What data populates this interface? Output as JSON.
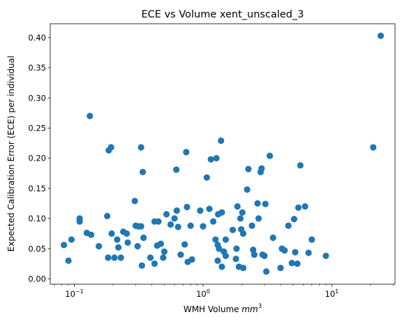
{
  "chart_data": {
    "type": "scatter",
    "title": "ECE vs Volume xent_unscaled_3",
    "xlabel_text": "WMH Volume ",
    "xlabel_unit": "mm",
    "xlabel_unit_exp": "3",
    "ylabel": "Expected Calibration Error (ECE) per individual",
    "xscale": "log",
    "xlim": [
      0.065,
      31
    ],
    "ylim": [
      -0.009,
      0.423
    ],
    "x_ticks": [
      {
        "value": 0.1,
        "base": "10",
        "exp": "−1"
      },
      {
        "value": 1,
        "base": "10",
        "exp": "0"
      },
      {
        "value": 10,
        "base": "10",
        "exp": "1"
      }
    ],
    "y_ticks": [
      {
        "value": 0.0,
        "label": "0.00"
      },
      {
        "value": 0.05,
        "label": "0.05"
      },
      {
        "value": 0.1,
        "label": "0.10"
      },
      {
        "value": 0.15,
        "label": "0.15"
      },
      {
        "value": 0.2,
        "label": "0.20"
      },
      {
        "value": 0.25,
        "label": "0.25"
      },
      {
        "value": 0.3,
        "label": "0.30"
      },
      {
        "value": 0.35,
        "label": "0.35"
      },
      {
        "value": 0.4,
        "label": "0.40"
      }
    ],
    "grid": false,
    "marker_color": "#1f77b4",
    "points": [
      [
        0.083,
        0.056
      ],
      [
        0.09,
        0.03
      ],
      [
        0.095,
        0.065
      ],
      [
        0.11,
        0.095
      ],
      [
        0.11,
        0.1
      ],
      [
        0.125,
        0.076
      ],
      [
        0.132,
        0.27
      ],
      [
        0.135,
        0.073
      ],
      [
        0.155,
        0.054
      ],
      [
        0.18,
        0.104
      ],
      [
        0.183,
        0.035
      ],
      [
        0.185,
        0.213
      ],
      [
        0.193,
        0.218
      ],
      [
        0.195,
        0.075
      ],
      [
        0.205,
        0.035
      ],
      [
        0.215,
        0.065
      ],
      [
        0.22,
        0.052
      ],
      [
        0.23,
        0.035
      ],
      [
        0.24,
        0.078
      ],
      [
        0.255,
        0.075
      ],
      [
        0.26,
        0.06
      ],
      [
        0.295,
        0.129
      ],
      [
        0.3,
        0.088
      ],
      [
        0.31,
        0.054
      ],
      [
        0.315,
        0.087
      ],
      [
        0.33,
        0.218
      ],
      [
        0.33,
        0.087
      ],
      [
        0.335,
        0.022
      ],
      [
        0.34,
        0.177
      ],
      [
        0.345,
        0.068
      ],
      [
        0.39,
        0.035
      ],
      [
        0.42,
        0.095
      ],
      [
        0.42,
        0.025
      ],
      [
        0.44,
        0.055
      ],
      [
        0.45,
        0.095
      ],
      [
        0.47,
        0.058
      ],
      [
        0.49,
        0.035
      ],
      [
        0.5,
        0.045
      ],
      [
        0.52,
        0.107
      ],
      [
        0.56,
        0.09
      ],
      [
        0.6,
        0.1
      ],
      [
        0.62,
        0.181
      ],
      [
        0.625,
        0.113
      ],
      [
        0.64,
        0.086
      ],
      [
        0.67,
        0.04
      ],
      [
        0.72,
        0.057
      ],
      [
        0.74,
        0.21
      ],
      [
        0.75,
        0.119
      ],
      [
        0.76,
        0.028
      ],
      [
        0.8,
        0.088
      ],
      [
        0.82,
        0.032
      ],
      [
        0.95,
        0.113
      ],
      [
        1.0,
        0.087
      ],
      [
        1.07,
        0.168
      ],
      [
        1.12,
        0.116
      ],
      [
        1.15,
        0.198
      ],
      [
        1.2,
        0.095
      ],
      [
        1.25,
        0.065
      ],
      [
        1.27,
        0.2
      ],
      [
        1.3,
        0.056
      ],
      [
        1.3,
        0.03
      ],
      [
        1.31,
        0.107
      ],
      [
        1.33,
        0.05
      ],
      [
        1.38,
        0.229
      ],
      [
        1.4,
        0.11
      ],
      [
        1.4,
        0.02
      ],
      [
        1.45,
        0.045
      ],
      [
        1.5,
        0.065
      ],
      [
        1.5,
        0.038
      ],
      [
        1.7,
        0.081
      ],
      [
        1.8,
        0.033
      ],
      [
        1.82,
        0.05
      ],
      [
        1.85,
        0.12
      ],
      [
        1.9,
        0.02
      ],
      [
        1.95,
        0.1
      ],
      [
        1.98,
        0.082
      ],
      [
        2.02,
        0.11
      ],
      [
        2.05,
        0.075
      ],
      [
        2.05,
        0.018
      ],
      [
        2.2,
        0.148
      ],
      [
        2.25,
        0.182
      ],
      [
        2.4,
        0.088
      ],
      [
        2.45,
        0.048
      ],
      [
        2.5,
        0.04
      ],
      [
        2.65,
        0.125
      ],
      [
        2.7,
        0.1
      ],
      [
        2.8,
        0.177
      ],
      [
        2.85,
        0.183
      ],
      [
        2.9,
        0.04
      ],
      [
        3.0,
        0.038
      ],
      [
        3.05,
        0.124
      ],
      [
        3.1,
        0.012
      ],
      [
        3.3,
        0.204
      ],
      [
        3.5,
        0.068
      ],
      [
        4.0,
        0.018
      ],
      [
        4.1,
        0.05
      ],
      [
        4.3,
        0.047
      ],
      [
        4.6,
        0.088
      ],
      [
        4.9,
        0.026
      ],
      [
        5.1,
        0.099
      ],
      [
        5.2,
        0.044
      ],
      [
        5.4,
        0.025
      ],
      [
        5.5,
        0.118
      ],
      [
        5.7,
        0.188
      ],
      [
        6.2,
        0.12
      ],
      [
        6.6,
        0.043
      ],
      [
        7.0,
        0.065
      ],
      [
        9.0,
        0.038
      ],
      [
        21.0,
        0.218
      ],
      [
        24.0,
        0.403
      ]
    ]
  }
}
